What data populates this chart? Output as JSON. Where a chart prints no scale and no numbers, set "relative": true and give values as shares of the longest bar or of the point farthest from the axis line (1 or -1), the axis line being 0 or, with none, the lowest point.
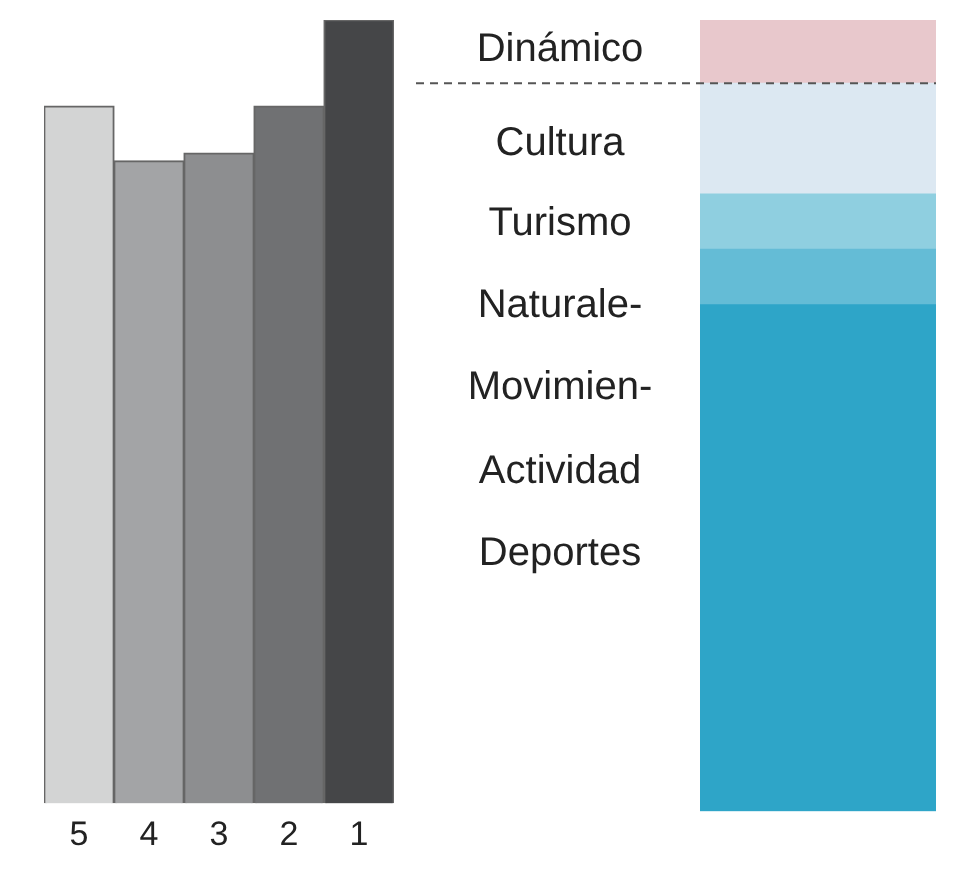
{
  "chart_data": [
    {
      "type": "bar",
      "relative": true,
      "categories": [
        "5",
        "4",
        "3",
        "2",
        "1"
      ],
      "values": [
        0.89,
        0.82,
        0.83,
        0.89,
        1
      ],
      "colors": [
        "#d3d4d4",
        "#a3a4a6",
        "#8d8e90",
        "#707173",
        "#454648"
      ],
      "grid": false,
      "legend": false
    },
    {
      "type": "bar",
      "relative": true,
      "stacked": true,
      "categories": [
        null
      ],
      "series": [
        {
          "color": "#2ea5c8",
          "values": [
            0.64
          ]
        },
        {
          "color": "#64bcd6",
          "values": [
            0.07
          ]
        },
        {
          "color": "#8fcfe0",
          "values": [
            0.07
          ]
        },
        {
          "color": "#dce8f2",
          "values": [
            0.14
          ]
        },
        {
          "color": "#e8c8cc",
          "values": [
            0.08
          ]
        }
      ],
      "ref_lines": [
        {
          "axis": "y",
          "value": 0.92,
          "line_style": "dashed",
          "color": "#555555"
        }
      ],
      "annotations": [
        "Dinámico",
        "Cultura",
        "Turismo",
        "Naturale-",
        "Movimien-",
        "Actividad",
        "Deportes"
      ],
      "grid": false,
      "legend": false
    }
  ]
}
